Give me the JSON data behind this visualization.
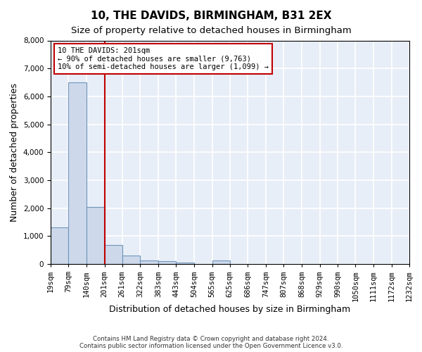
{
  "title": "10, THE DAVIDS, BIRMINGHAM, B31 2EX",
  "subtitle": "Size of property relative to detached houses in Birmingham",
  "xlabel": "Distribution of detached houses by size in Birmingham",
  "ylabel": "Number of detached properties",
  "footnote1": "Contains HM Land Registry data © Crown copyright and database right 2024.",
  "footnote2": "Contains public sector information licensed under the Open Government Licence v3.0.",
  "annotation_line1": "10 THE DAVIDS: 201sqm",
  "annotation_line2": "← 90% of detached houses are smaller (9,763)",
  "annotation_line3": "10% of semi-detached houses are larger (1,099) →",
  "bar_color": "#cdd9ea",
  "bar_edge_color": "#7094bc",
  "vline_color": "#c00000",
  "vline_x": 201,
  "bin_edges": [
    19,
    79,
    140,
    201,
    261,
    322,
    383,
    443,
    504,
    565,
    625,
    686,
    747,
    807,
    868,
    929,
    990,
    1050,
    1111,
    1172,
    1232
  ],
  "bar_heights": [
    1300,
    6500,
    2050,
    670,
    300,
    130,
    90,
    55,
    0,
    120,
    0,
    0,
    0,
    0,
    0,
    0,
    0,
    0,
    0,
    0
  ],
  "ylim": [
    0,
    8000
  ],
  "yticks": [
    0,
    1000,
    2000,
    3000,
    4000,
    5000,
    6000,
    7000,
    8000
  ],
  "background_color": "#e8eef7",
  "grid_color": "#ffffff",
  "title_fontsize": 11,
  "subtitle_fontsize": 9.5,
  "axis_label_fontsize": 9,
  "tick_fontsize": 7.5,
  "annot_fontsize": 7.5
}
